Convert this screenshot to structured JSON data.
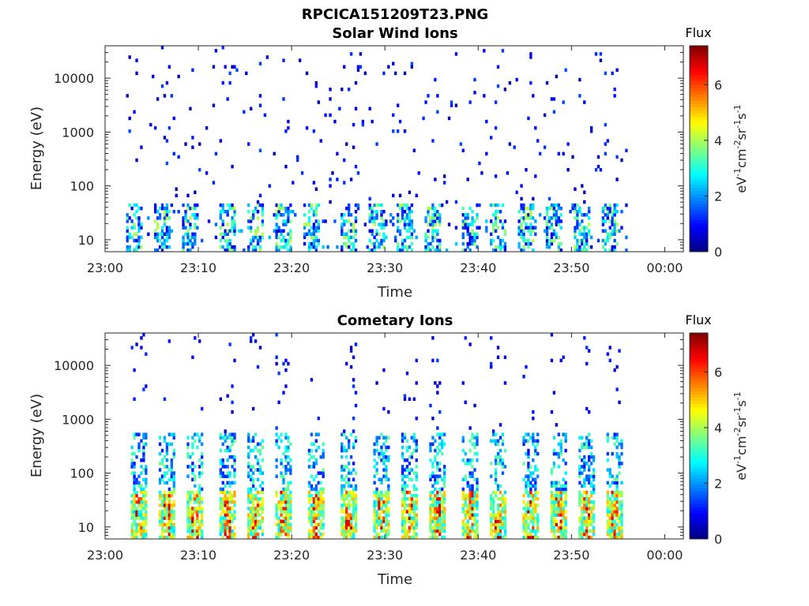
{
  "figure": {
    "title": "RPCICA151209T23.PNG"
  },
  "chart_data": [
    {
      "type": "heatmap",
      "title": "Solar Wind Ions",
      "xlabel": "Time",
      "ylabel": "Energy (eV)",
      "y_scale": "log",
      "ylim": [
        6,
        40000
      ],
      "xlim": [
        "23:00",
        "00:02"
      ],
      "x_ticks": [
        "23:00",
        "23:10",
        "23:20",
        "23:30",
        "23:40",
        "23:50",
        "00:00"
      ],
      "y_ticks": [
        "10",
        "100",
        "1000",
        "10000"
      ],
      "colorbar": {
        "label": "Flux",
        "unit": "eV-1cm-2sr-1s-1",
        "range": [
          0,
          7.4
        ],
        "ticks": [
          "0",
          "2",
          "4",
          "6"
        ],
        "colormap": "jet"
      },
      "data_extent": [
        "23:02",
        "23:56"
      ],
      "band_centers_min": [
        3,
        6,
        9,
        13,
        16,
        19,
        22,
        26,
        29,
        32,
        35,
        39,
        42,
        45,
        48,
        51,
        54
      ]
    },
    {
      "type": "heatmap",
      "title": "Cometary Ions",
      "xlabel": "Time",
      "ylabel": "Energy (eV)",
      "y_scale": "log",
      "ylim": [
        6,
        40000
      ],
      "xlim": [
        "23:00",
        "00:02"
      ],
      "x_ticks": [
        "23:00",
        "23:10",
        "23:20",
        "23:30",
        "23:40",
        "23:50",
        "00:00"
      ],
      "y_ticks": [
        "10",
        "100",
        "1000",
        "10000"
      ],
      "colorbar": {
        "label": "Flux",
        "unit": "eV-1cm-2sr-1s-1",
        "range": [
          0,
          7.4
        ],
        "ticks": [
          "0",
          "2",
          "4",
          "6"
        ],
        "colormap": "jet"
      },
      "data_extent": [
        "23:02",
        "23:56"
      ],
      "band_centers_min": [
        3.5,
        6.5,
        9.5,
        13,
        16,
        19,
        22.5,
        26,
        29.5,
        32.5,
        35.5,
        39,
        42,
        45.5,
        48.5,
        51.5,
        54.5
      ]
    }
  ]
}
